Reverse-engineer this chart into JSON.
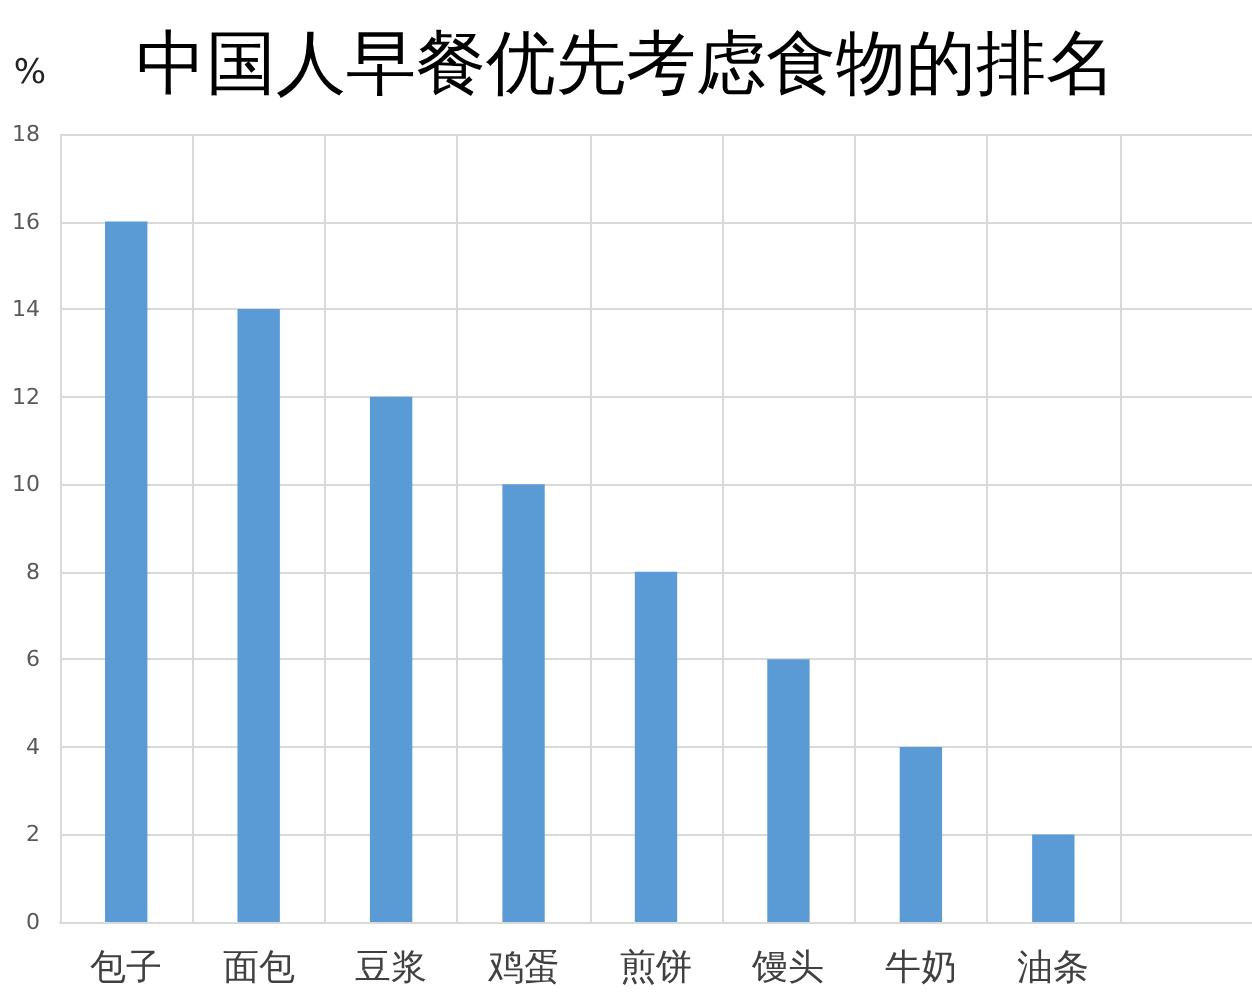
{
  "chart_data": {
    "type": "bar",
    "title": "中国人早餐优先考虑食物的排名",
    "ylabel": "%",
    "categories": [
      "包子",
      "面包",
      "豆浆",
      "鸡蛋",
      "煎饼",
      "馒头",
      "牛奶",
      "油条",
      null
    ],
    "values": [
      16,
      14,
      12,
      10,
      8,
      6,
      4,
      2,
      null
    ],
    "color": "#5b9bd5",
    "ylim": [
      0,
      18
    ],
    "yticks": [
      0,
      2,
      4,
      6,
      8,
      10,
      12,
      14,
      16,
      18
    ],
    "grid": true
  }
}
